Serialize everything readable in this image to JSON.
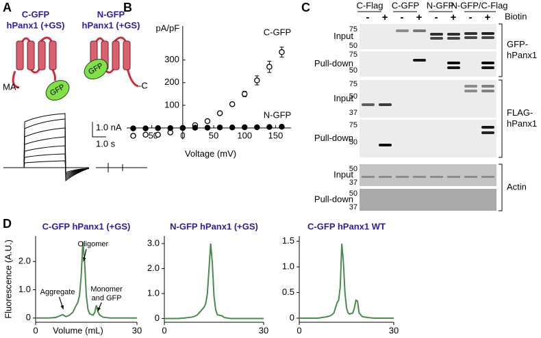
{
  "panel_labels": [
    "A",
    "B",
    "C",
    "D"
  ],
  "panel_a": {
    "constructs": [
      {
        "name": "C-GFP",
        "subtitle": "hPanx1 (+GS)",
        "terminus": "MA-",
        "tag": "GFP"
      },
      {
        "name": "N-GFP",
        "subtitle": "hPanx1 (+GS)",
        "terminus": "-C",
        "tag": "GFP"
      }
    ],
    "scale_current": "1.0 nA",
    "scale_time": "1.0 s"
  },
  "panel_c": {
    "lanes": [
      "C-Flag",
      "C-GFP",
      "N-GFP",
      "N-GFP/C-Flag"
    ],
    "biotin_label": "Biotin",
    "biotin_states": [
      "-",
      "+",
      "-",
      "+",
      "-",
      "+",
      "-",
      "+"
    ],
    "rows": [
      {
        "label": "Input",
        "markers": [
          75,
          50
        ]
      },
      {
        "label": "Pull-down",
        "markers": [
          75,
          50
        ]
      },
      {
        "label": "Input",
        "markers": [
          75,
          50,
          37
        ]
      },
      {
        "label": "Pull-down",
        "markers": [
          75,
          50
        ]
      },
      {
        "label": "Input",
        "markers": [
          50,
          37
        ]
      },
      {
        "label": "Pull-down",
        "markers": [
          50,
          37
        ]
      }
    ],
    "groups": [
      {
        "lines": [
          "GFP-",
          "hPanx1"
        ]
      },
      {
        "lines": [
          "FLAG-",
          "hPanx1"
        ]
      },
      {
        "lines": [
          "Actin"
        ]
      }
    ]
  },
  "chart_data": [
    {
      "type": "errorbar",
      "y_label": "pA/pF",
      "x_label": "Voltage (mV)",
      "x": [
        -80,
        -60,
        -40,
        -20,
        0,
        20,
        40,
        60,
        80,
        100,
        120,
        140,
        160
      ],
      "series": [
        {
          "name": "C-GFP",
          "marker": "open",
          "color": "#000000",
          "values": [
            -35,
            -30,
            -30,
            -20,
            0,
            12,
            30,
            65,
            105,
            150,
            210,
            270,
            335
          ],
          "errors": [
            8,
            8,
            7,
            6,
            0,
            5,
            5,
            6,
            8,
            12,
            20,
            25,
            22
          ]
        },
        {
          "name": "N-GFP",
          "marker": "filled",
          "color": "#000000",
          "values": [
            -2,
            -2,
            -1,
            -1,
            0,
            1,
            1,
            2,
            2,
            3,
            3,
            4,
            5
          ]
        }
      ],
      "xlim": [
        -85,
        175
      ],
      "ylim": [
        -50,
        420
      ],
      "xticks": [
        -50,
        0,
        50,
        100,
        150
      ],
      "yticks": [
        100,
        200,
        300
      ]
    },
    {
      "type": "line",
      "title": "C-GFP hPanx1 (+GS)",
      "y_label": "Fluorescence (A.U.)",
      "x_label": "Volume (mL)",
      "x": [
        0,
        2,
        4,
        6,
        8,
        9,
        10,
        11,
        12,
        12.5,
        13,
        13.5,
        14,
        14.5,
        15,
        15.5,
        16,
        17,
        17.5,
        18,
        18.5,
        19,
        20,
        22,
        24,
        26,
        28,
        30
      ],
      "values": [
        0,
        0,
        0,
        0.02,
        0.12,
        0.05,
        0.1,
        0.2,
        0.45,
        0.55,
        0.8,
        1.5,
        2.7,
        2.0,
        0.8,
        0.3,
        0.15,
        0.1,
        0.2,
        0.45,
        0.2,
        0.1,
        0.03,
        0,
        0,
        0,
        0,
        0
      ],
      "color": "#4a8a4a",
      "annotations": [
        "Oligomer",
        "Aggregate",
        "Monomer",
        "and GFP"
      ],
      "xlim": [
        0,
        30
      ],
      "ylim": [
        -0.15,
        2.9
      ],
      "xticks": [
        0,
        30
      ],
      "yticks": [
        0,
        {
          "value": 1,
          "label": "1.0"
        },
        {
          "value": 2,
          "label": "2.0"
        }
      ]
    },
    {
      "type": "line",
      "title": "N-GFP hPanx1 (+GS)",
      "x": [
        0,
        2,
        4,
        6,
        8,
        9,
        10,
        11,
        12,
        12.5,
        13,
        13.5,
        14,
        14.5,
        15,
        15.5,
        16,
        17,
        17.5,
        18,
        18.5,
        19,
        20,
        22,
        24,
        26,
        28,
        30
      ],
      "values": [
        0,
        0,
        0,
        0.02,
        0.05,
        0.08,
        0.15,
        0.3,
        0.45,
        0.6,
        1.0,
        2.0,
        3.0,
        2.2,
        0.9,
        0.35,
        0.15,
        0.12,
        0.1,
        0.05,
        0.03,
        0.02,
        0,
        0,
        0,
        0,
        0,
        0
      ],
      "color": "#4a8a4a",
      "xlim": [
        0,
        30
      ],
      "ylim": [
        -0.15,
        3.3
      ],
      "xticks": [
        0,
        30
      ],
      "yticks": [
        0,
        {
          "value": 1,
          "label": "1.0"
        },
        {
          "value": 2,
          "label": "2.0"
        },
        {
          "value": 3,
          "label": "3.0"
        }
      ]
    },
    {
      "type": "line",
      "title": "C-GFP hPanx1 WT",
      "x": [
        0,
        2,
        4,
        6,
        8,
        9,
        10,
        11,
        12,
        12.5,
        13,
        13.5,
        14,
        14.5,
        15,
        15.5,
        16,
        17,
        17.5,
        18,
        18.5,
        19,
        20,
        22,
        24,
        26,
        28,
        30
      ],
      "values": [
        0,
        0,
        0,
        0,
        0.02,
        0.03,
        0.05,
        0.1,
        0.3,
        0.35,
        0.6,
        1.45,
        1.1,
        0.5,
        0.2,
        0.1,
        0.08,
        0.1,
        0.2,
        0.35,
        0.33,
        0.1,
        0.03,
        0.01,
        0,
        0,
        0,
        0
      ],
      "color": "#4a8a4a",
      "xlim": [
        0,
        30
      ],
      "ylim": [
        -0.08,
        1.6
      ],
      "xticks": [
        0,
        30
      ],
      "yticks": [
        0,
        0.5,
        {
          "value": 1,
          "label": "1.0"
        },
        1.5
      ]
    }
  ]
}
